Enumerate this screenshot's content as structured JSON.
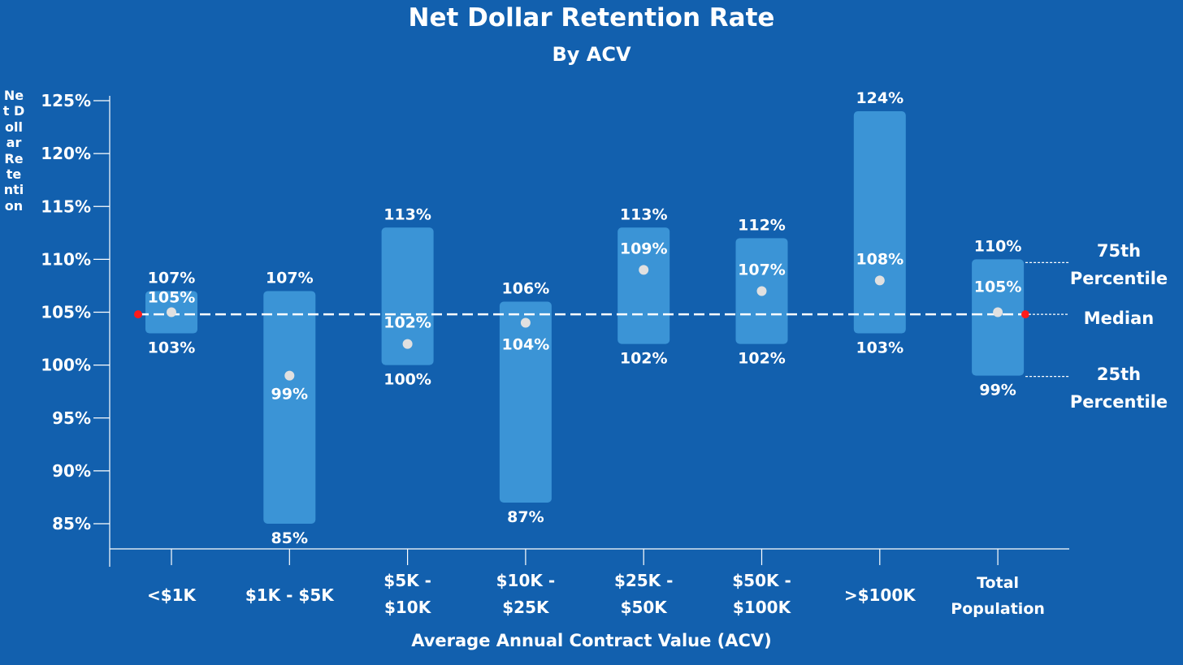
{
  "colors": {
    "background": "#1260ae",
    "bar": "#3b94d6",
    "median_dot": "#e0e0e0",
    "total_median_marker": "#ff1a1a",
    "line": "#ffffff"
  },
  "chart_data": {
    "type": "floating-bar",
    "title": "Net  Dollar Retention Rate",
    "subtitle": "By ACV",
    "xlabel": "Average Annual Contract Value (ACV)",
    "ylabel": "Net Dollar Retention",
    "ylim": [
      82,
      125
    ],
    "yticks": [
      85,
      90,
      95,
      100,
      105,
      110,
      115,
      120,
      125
    ],
    "ytick_labels": [
      "85%",
      "90%",
      "95%",
      "100%",
      "105%",
      "110%",
      "115%",
      "120%",
      "125%"
    ],
    "categories": [
      [
        "<$1K"
      ],
      [
        "$1K - $5K"
      ],
      [
        "$5K -",
        "$10K"
      ],
      [
        "$10K -",
        "$25K"
      ],
      [
        "$25K -",
        "$50K"
      ],
      [
        "$50K -",
        "$100K"
      ],
      [
        ">$100K"
      ],
      [
        "Total",
        "Population"
      ]
    ],
    "p25": [
      103,
      85,
      100,
      87,
      102,
      102,
      103,
      99
    ],
    "median": [
      105,
      99,
      102,
      104,
      109,
      107,
      108,
      105
    ],
    "p75": [
      107,
      107,
      113,
      106,
      113,
      112,
      124,
      110
    ],
    "p25_labels": [
      "103%",
      "85%",
      "100%",
      "87%",
      "102%",
      "102%",
      "103%",
      "99%"
    ],
    "median_labels": [
      "105%",
      "99%",
      "102%",
      "104%",
      "109%",
      "107%",
      "108%",
      "105%"
    ],
    "p75_labels": [
      "107%",
      "107%",
      "113%",
      "106%",
      "113%",
      "112%",
      "124%",
      "110%"
    ],
    "reference_line": {
      "label": "Total population median",
      "value": 104.8
    },
    "legend": {
      "p75": [
        "75th",
        "Percentile"
      ],
      "median": [
        "Median"
      ],
      "p25": [
        "25th",
        "Percentile"
      ]
    }
  }
}
